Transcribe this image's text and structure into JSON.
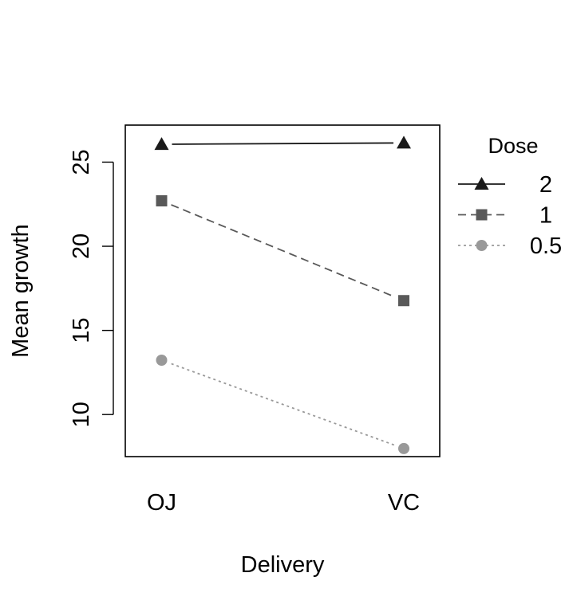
{
  "chart_data": {
    "type": "line",
    "categories": [
      "OJ",
      "VC"
    ],
    "series": [
      {
        "name": "2",
        "values": [
          26.06,
          26.14
        ],
        "color": "#1a1a1a",
        "marker": "triangle",
        "line": "solid"
      },
      {
        "name": "1",
        "values": [
          22.7,
          16.77
        ],
        "color": "#595959",
        "marker": "square",
        "line": "dashed"
      },
      {
        "name": "0.5",
        "values": [
          13.23,
          7.98
        ],
        "color": "#999999",
        "marker": "circle",
        "line": "dotted"
      }
    ],
    "title": "",
    "xlabel": "Delivery",
    "ylabel": "Mean growth",
    "ylim": [
      7.5,
      27.2
    ],
    "yticks": [
      10,
      15,
      20,
      25
    ],
    "legend_title": "Dose",
    "legend_position": "right",
    "grid": false
  }
}
